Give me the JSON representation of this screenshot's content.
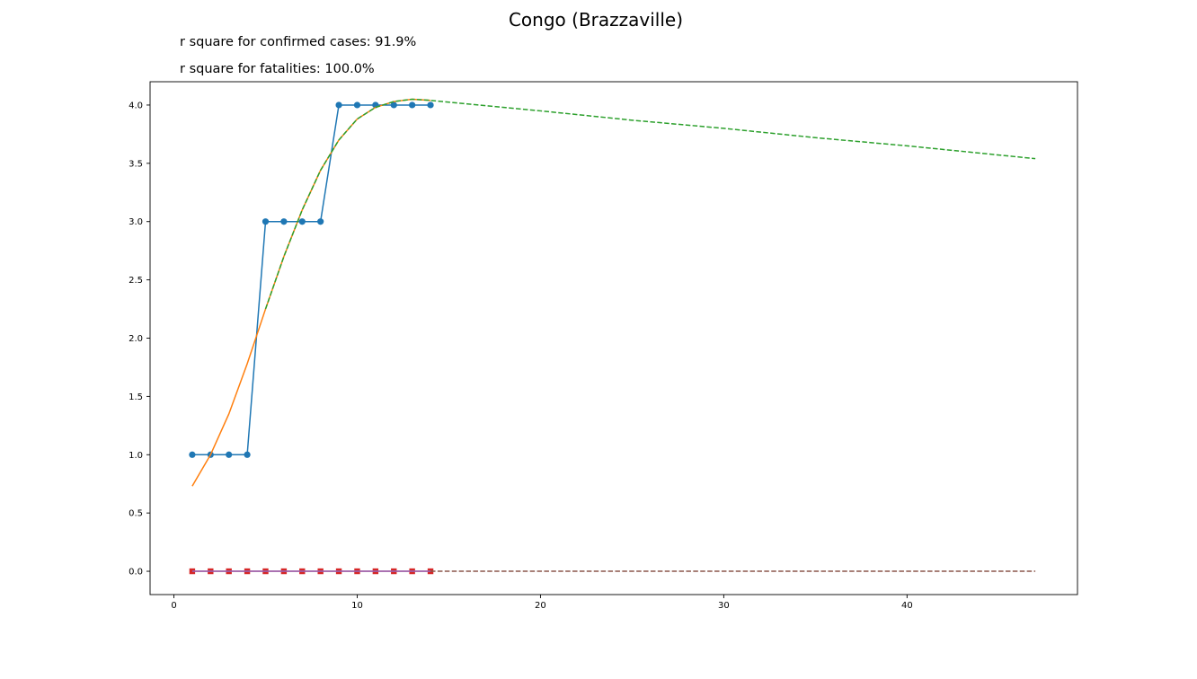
{
  "chart_data": {
    "type": "line",
    "title": "Congo (Brazzaville)",
    "annotations": [
      "r square for confirmed cases: 91.9%",
      "r square for fatalities: 100.0%"
    ],
    "xlabel": "",
    "ylabel": "",
    "xlim": [
      -1.3,
      49.3
    ],
    "ylim": [
      -0.2,
      4.2
    ],
    "xticks": [
      0,
      10,
      20,
      30,
      40
    ],
    "yticks": [
      0.0,
      0.5,
      1.0,
      1.5,
      2.0,
      2.5,
      3.0,
      3.5,
      4.0
    ],
    "grid": false,
    "legend": "none",
    "series": [
      {
        "kind": "observed-confirmed",
        "color": "#1f77b4",
        "style": "solid",
        "marker": "circle",
        "x": [
          1,
          2,
          3,
          4,
          5,
          6,
          7,
          8,
          9,
          10,
          11,
          12,
          13,
          14
        ],
        "y": [
          1,
          1,
          1,
          1,
          3,
          3,
          3,
          3,
          4,
          4,
          4,
          4,
          4,
          4
        ]
      },
      {
        "kind": "fit-confirmed",
        "color": "#ff7f0e",
        "style": "solid",
        "marker": "none",
        "x": [
          1,
          2,
          3,
          4,
          5,
          6,
          7,
          8,
          9,
          10,
          11,
          12,
          13,
          14
        ],
        "y": [
          0.73,
          1.0,
          1.35,
          1.78,
          2.25,
          2.7,
          3.1,
          3.44,
          3.7,
          3.88,
          3.98,
          4.03,
          4.05,
          4.04
        ]
      },
      {
        "kind": "projection-confirmed",
        "color": "#2ca02c",
        "style": "dashed",
        "marker": "none",
        "x": [
          5,
          6,
          7,
          8,
          9,
          10,
          11,
          12,
          13,
          14,
          20,
          25,
          30,
          35,
          40,
          47
        ],
        "y": [
          2.25,
          2.7,
          3.1,
          3.44,
          3.7,
          3.88,
          3.98,
          4.03,
          4.05,
          4.04,
          3.95,
          3.87,
          3.8,
          3.72,
          3.65,
          3.54
        ]
      },
      {
        "kind": "observed-fatalities",
        "color": "#d62728",
        "style": "solid",
        "marker": "square",
        "x": [
          1,
          2,
          3,
          4,
          5,
          6,
          7,
          8,
          9,
          10,
          11,
          12,
          13,
          14
        ],
        "y": [
          0,
          0,
          0,
          0,
          0,
          0,
          0,
          0,
          0,
          0,
          0,
          0,
          0,
          0
        ]
      },
      {
        "kind": "fit-fatalities",
        "color": "#9467bd",
        "style": "solid",
        "marker": "none",
        "x": [
          1,
          14
        ],
        "y": [
          0,
          0
        ]
      },
      {
        "kind": "projection-fatalities",
        "color": "#8c564b",
        "style": "dashed",
        "marker": "none",
        "x": [
          14,
          47
        ],
        "y": [
          0,
          0
        ]
      }
    ]
  }
}
